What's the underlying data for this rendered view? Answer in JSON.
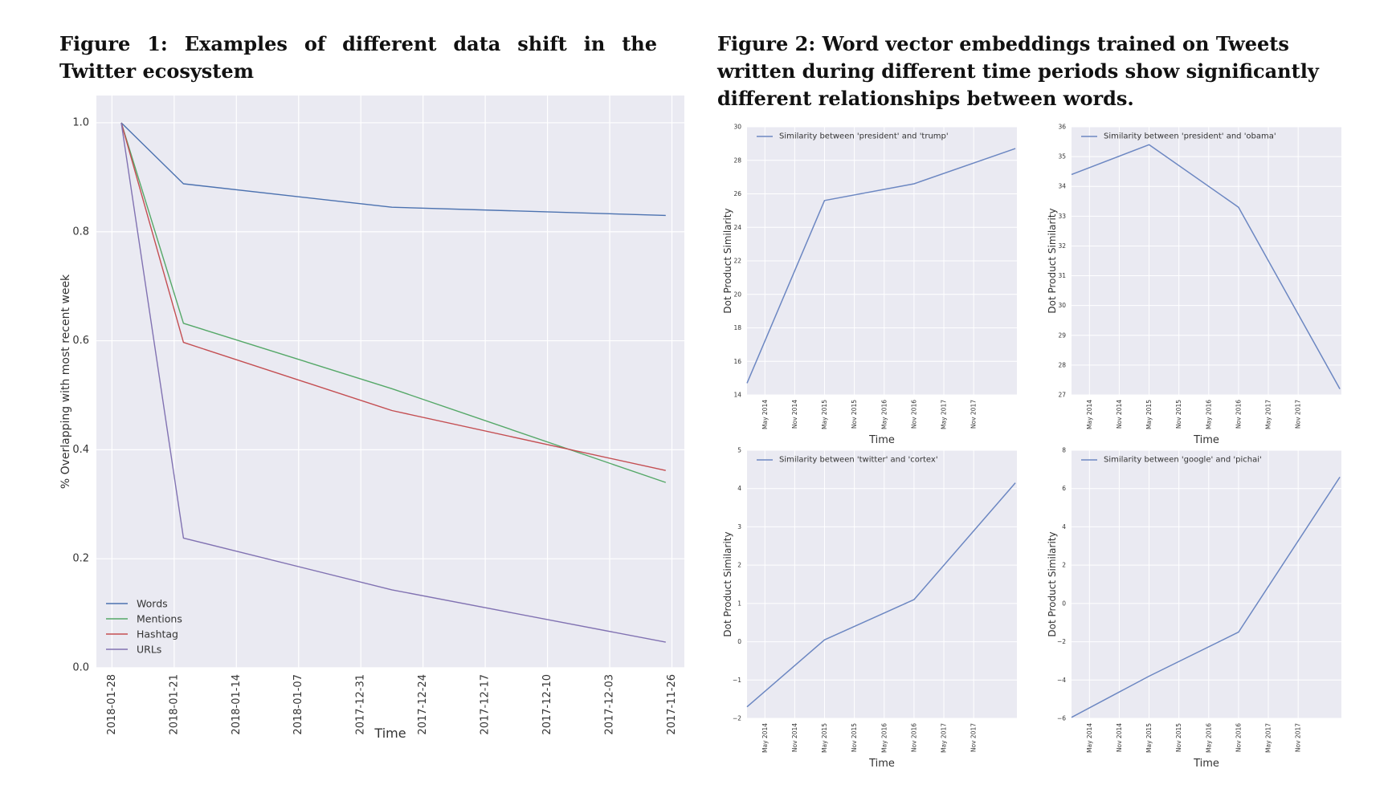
{
  "figure1": {
    "caption": "Figure 1: Examples of different data shift in the Twitter ecosystem"
  },
  "figure2": {
    "caption": "Figure 2: Word vector embeddings trained on Tweets written during different time periods show significantly different relationships between words."
  },
  "colors": {
    "panel_bg": "#eaeaf2",
    "grid": "#ffffff",
    "words": "#4c72b0",
    "mentions": "#55a868",
    "hashtag": "#c44e52",
    "urls": "#8172b2",
    "small_line": "#6c87c2"
  },
  "chart_data": [
    {
      "type": "line",
      "xlabel": "Time",
      "ylabel": "% Overlapping with most recent week",
      "categories": [
        "2018-01-28",
        "2018-01-21",
        "2018-01-14",
        "2018-01-07",
        "2017-12-31",
        "2017-12-24",
        "2017-12-17",
        "2017-12-10",
        "2017-12-03",
        "2017-11-26"
      ],
      "ylim": [
        0,
        1.05
      ],
      "yticks": [
        0.0,
        0.2,
        0.4,
        0.6,
        0.8,
        1.0
      ],
      "grid": true,
      "legend": "lower-left",
      "series": [
        {
          "name": "Words",
          "color": "#4c72b0",
          "points": [
            [
              0.15,
              1.0
            ],
            [
              1.15,
              0.888
            ],
            [
              4.5,
              0.845
            ],
            [
              8.9,
              0.83
            ]
          ]
        },
        {
          "name": "Mentions",
          "color": "#55a868",
          "points": [
            [
              0.15,
              1.0
            ],
            [
              1.15,
              0.632
            ],
            [
              4.5,
              0.512
            ],
            [
              8.9,
              0.34
            ]
          ]
        },
        {
          "name": "Hashtag",
          "color": "#c44e52",
          "points": [
            [
              0.15,
              1.0
            ],
            [
              1.15,
              0.597
            ],
            [
              4.5,
              0.472
            ],
            [
              8.9,
              0.362
            ]
          ]
        },
        {
          "name": "URLs",
          "color": "#8172b2",
          "points": [
            [
              0.15,
              1.0
            ],
            [
              1.15,
              0.238
            ],
            [
              4.5,
              0.143
            ],
            [
              8.9,
              0.047
            ]
          ]
        }
      ]
    },
    {
      "type": "line",
      "xlabel": "Time",
      "ylabel": "Dot Product Similarity",
      "ylim": [
        14,
        30
      ],
      "yticks": [
        14,
        16,
        18,
        20,
        22,
        24,
        26,
        28,
        30
      ],
      "xticks": [
        "May 2014",
        "Nov 2014",
        "May 2015",
        "Nov 2015",
        "May 2016",
        "Nov 2016",
        "May 2017",
        "Nov 2017"
      ],
      "grid": true,
      "legend": "top-left",
      "series": [
        {
          "name": "Similarity between 'president' and 'trump'",
          "color": "#6c87c2",
          "points": [
            [
              -0.6,
              14.7
            ],
            [
              2.0,
              25.6
            ],
            [
              5.0,
              26.6
            ],
            [
              8.4,
              28.7
            ]
          ]
        }
      ]
    },
    {
      "type": "line",
      "xlabel": "Time",
      "ylabel": "Dot Product Similarity",
      "ylim": [
        27,
        36
      ],
      "yticks": [
        27,
        28,
        29,
        30,
        31,
        32,
        33,
        34,
        35,
        36
      ],
      "xticks": [
        "May 2014",
        "Nov 2014",
        "May 2015",
        "Nov 2015",
        "May 2016",
        "Nov 2016",
        "May 2017",
        "Nov 2017"
      ],
      "grid": true,
      "legend": "top-left",
      "series": [
        {
          "name": "Similarity between 'president' and 'obama'",
          "color": "#6c87c2",
          "points": [
            [
              -0.6,
              34.4
            ],
            [
              2.0,
              35.4
            ],
            [
              5.0,
              33.3
            ],
            [
              8.4,
              27.2
            ]
          ]
        }
      ]
    },
    {
      "type": "line",
      "xlabel": "Time",
      "ylabel": "Dot Product Similarity",
      "ylim": [
        -2,
        5
      ],
      "yticks": [
        -2,
        -1,
        0,
        1,
        2,
        3,
        4,
        5
      ],
      "xticks": [
        "May 2014",
        "Nov 2014",
        "May 2015",
        "Nov 2015",
        "May 2016",
        "Nov 2016",
        "May 2017",
        "Nov 2017"
      ],
      "grid": true,
      "legend": "top-left",
      "series": [
        {
          "name": "Similarity between 'twitter' and 'cortex'",
          "color": "#6c87c2",
          "points": [
            [
              -0.6,
              -1.7
            ],
            [
              2.0,
              0.05
            ],
            [
              5.0,
              1.1
            ],
            [
              8.4,
              4.15
            ]
          ]
        }
      ]
    },
    {
      "type": "line",
      "xlabel": "Time",
      "ylabel": "Dot Product Similarity",
      "ylim": [
        -6,
        8
      ],
      "yticks": [
        -6,
        -4,
        -2,
        0,
        2,
        4,
        6,
        8
      ],
      "xticks": [
        "May 2014",
        "Nov 2014",
        "May 2015",
        "Nov 2015",
        "May 2016",
        "Nov 2016",
        "May 2017",
        "Nov 2017"
      ],
      "grid": true,
      "legend": "top-left",
      "series": [
        {
          "name": "Similarity between 'google' and 'pichai'",
          "color": "#6c87c2",
          "points": [
            [
              -0.6,
              -5.95
            ],
            [
              2.0,
              -3.8
            ],
            [
              5.0,
              -1.5
            ],
            [
              8.4,
              6.6
            ]
          ]
        }
      ]
    }
  ]
}
